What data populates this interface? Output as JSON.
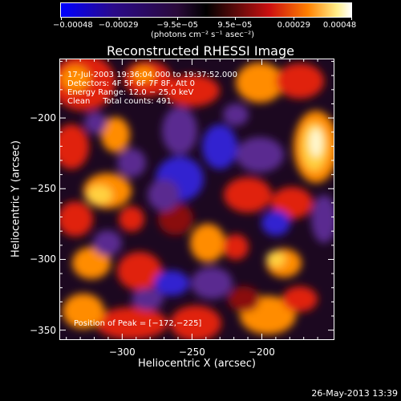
{
  "chart_data": {
    "type": "heatmap",
    "title": "Reconstructed RHESSI Image",
    "xlabel": "Heliocentric X (arcsec)",
    "ylabel": "Heliocentric Y (arcsec)",
    "xlim": [
      -345,
      -148
    ],
    "ylim": [
      -357,
      -158
    ],
    "x_ticks": [
      -300,
      -250,
      -200
    ],
    "x_tick_labels": [
      "−300",
      "−250",
      "−200"
    ],
    "y_ticks": [
      -350,
      -300,
      -250,
      -200
    ],
    "y_tick_labels": [
      "−350",
      "−300",
      "−250",
      "−200"
    ],
    "colorbar": {
      "min": -0.00048,
      "max": 0.00048,
      "ticks": [
        -0.00048,
        -0.00029,
        -9.5e-05,
        9.5e-05,
        0.00029,
        0.00048
      ],
      "tick_labels": [
        "−0.00048",
        "−0.00029",
        "−9.5e−05",
        "9.5e−05",
        "0.00029",
        "0.00048"
      ],
      "unit_label": "(photons cm⁻² s⁻¹ asec⁻²)",
      "colormap": [
        "#0000ff",
        "#2a0a8a",
        "#2a0a3a",
        "#000000",
        "#5a0a0a",
        "#cc1010",
        "#ff8000",
        "#ffffff"
      ]
    },
    "annotations": [
      "17-Jul-2003 19:36:04.000 to 19:37:52.000",
      "Detectors: 4F 5F 6F 7F 8F, Att 0",
      "Energy Range: 12.0 − 25.0 keV",
      "Clean     Total counts: 491."
    ],
    "peak_label": "Position of Peak = [−172,−225]",
    "peak": {
      "x": -172,
      "y": -225
    }
  },
  "footer": {
    "date": "26-May-2013 13:39"
  }
}
